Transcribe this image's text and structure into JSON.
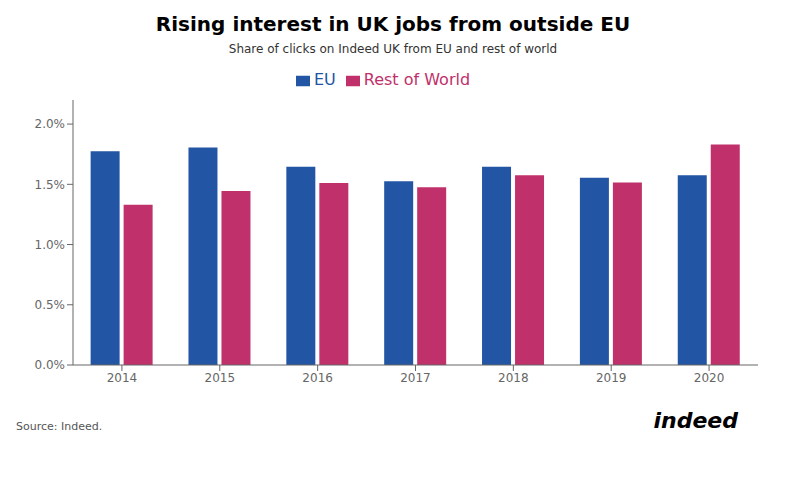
{
  "chart_data": {
    "type": "bar",
    "title": "Rising interest in UK jobs from outside EU",
    "subtitle": "Share of clicks on Indeed UK from EU and rest of world",
    "categories": [
      "2014",
      "2015",
      "2016",
      "2017",
      "2018",
      "2019",
      "2020"
    ],
    "series": [
      {
        "name": "EU",
        "color": "#2255a4",
        "values": [
          0.01775,
          0.01805,
          0.01645,
          0.01525,
          0.01645,
          0.01555,
          0.01575
        ]
      },
      {
        "name": "Rest of World",
        "color": "#c0306a",
        "values": [
          0.0133,
          0.01445,
          0.0151,
          0.01475,
          0.01575,
          0.01515,
          0.0183
        ]
      }
    ],
    "ylim": [
      0,
      0.022
    ],
    "yticks": [
      {
        "value": 0,
        "label": "0.0%"
      },
      {
        "value": 0.005,
        "label": "0.5%"
      },
      {
        "value": 0.01,
        "label": "1.0%"
      },
      {
        "value": 0.015,
        "label": "1.5%"
      },
      {
        "value": 0.02,
        "label": "2.0%"
      }
    ],
    "grid": false,
    "legend": "top",
    "annotations": [
      "Source: Indeed.",
      "indeed"
    ]
  }
}
